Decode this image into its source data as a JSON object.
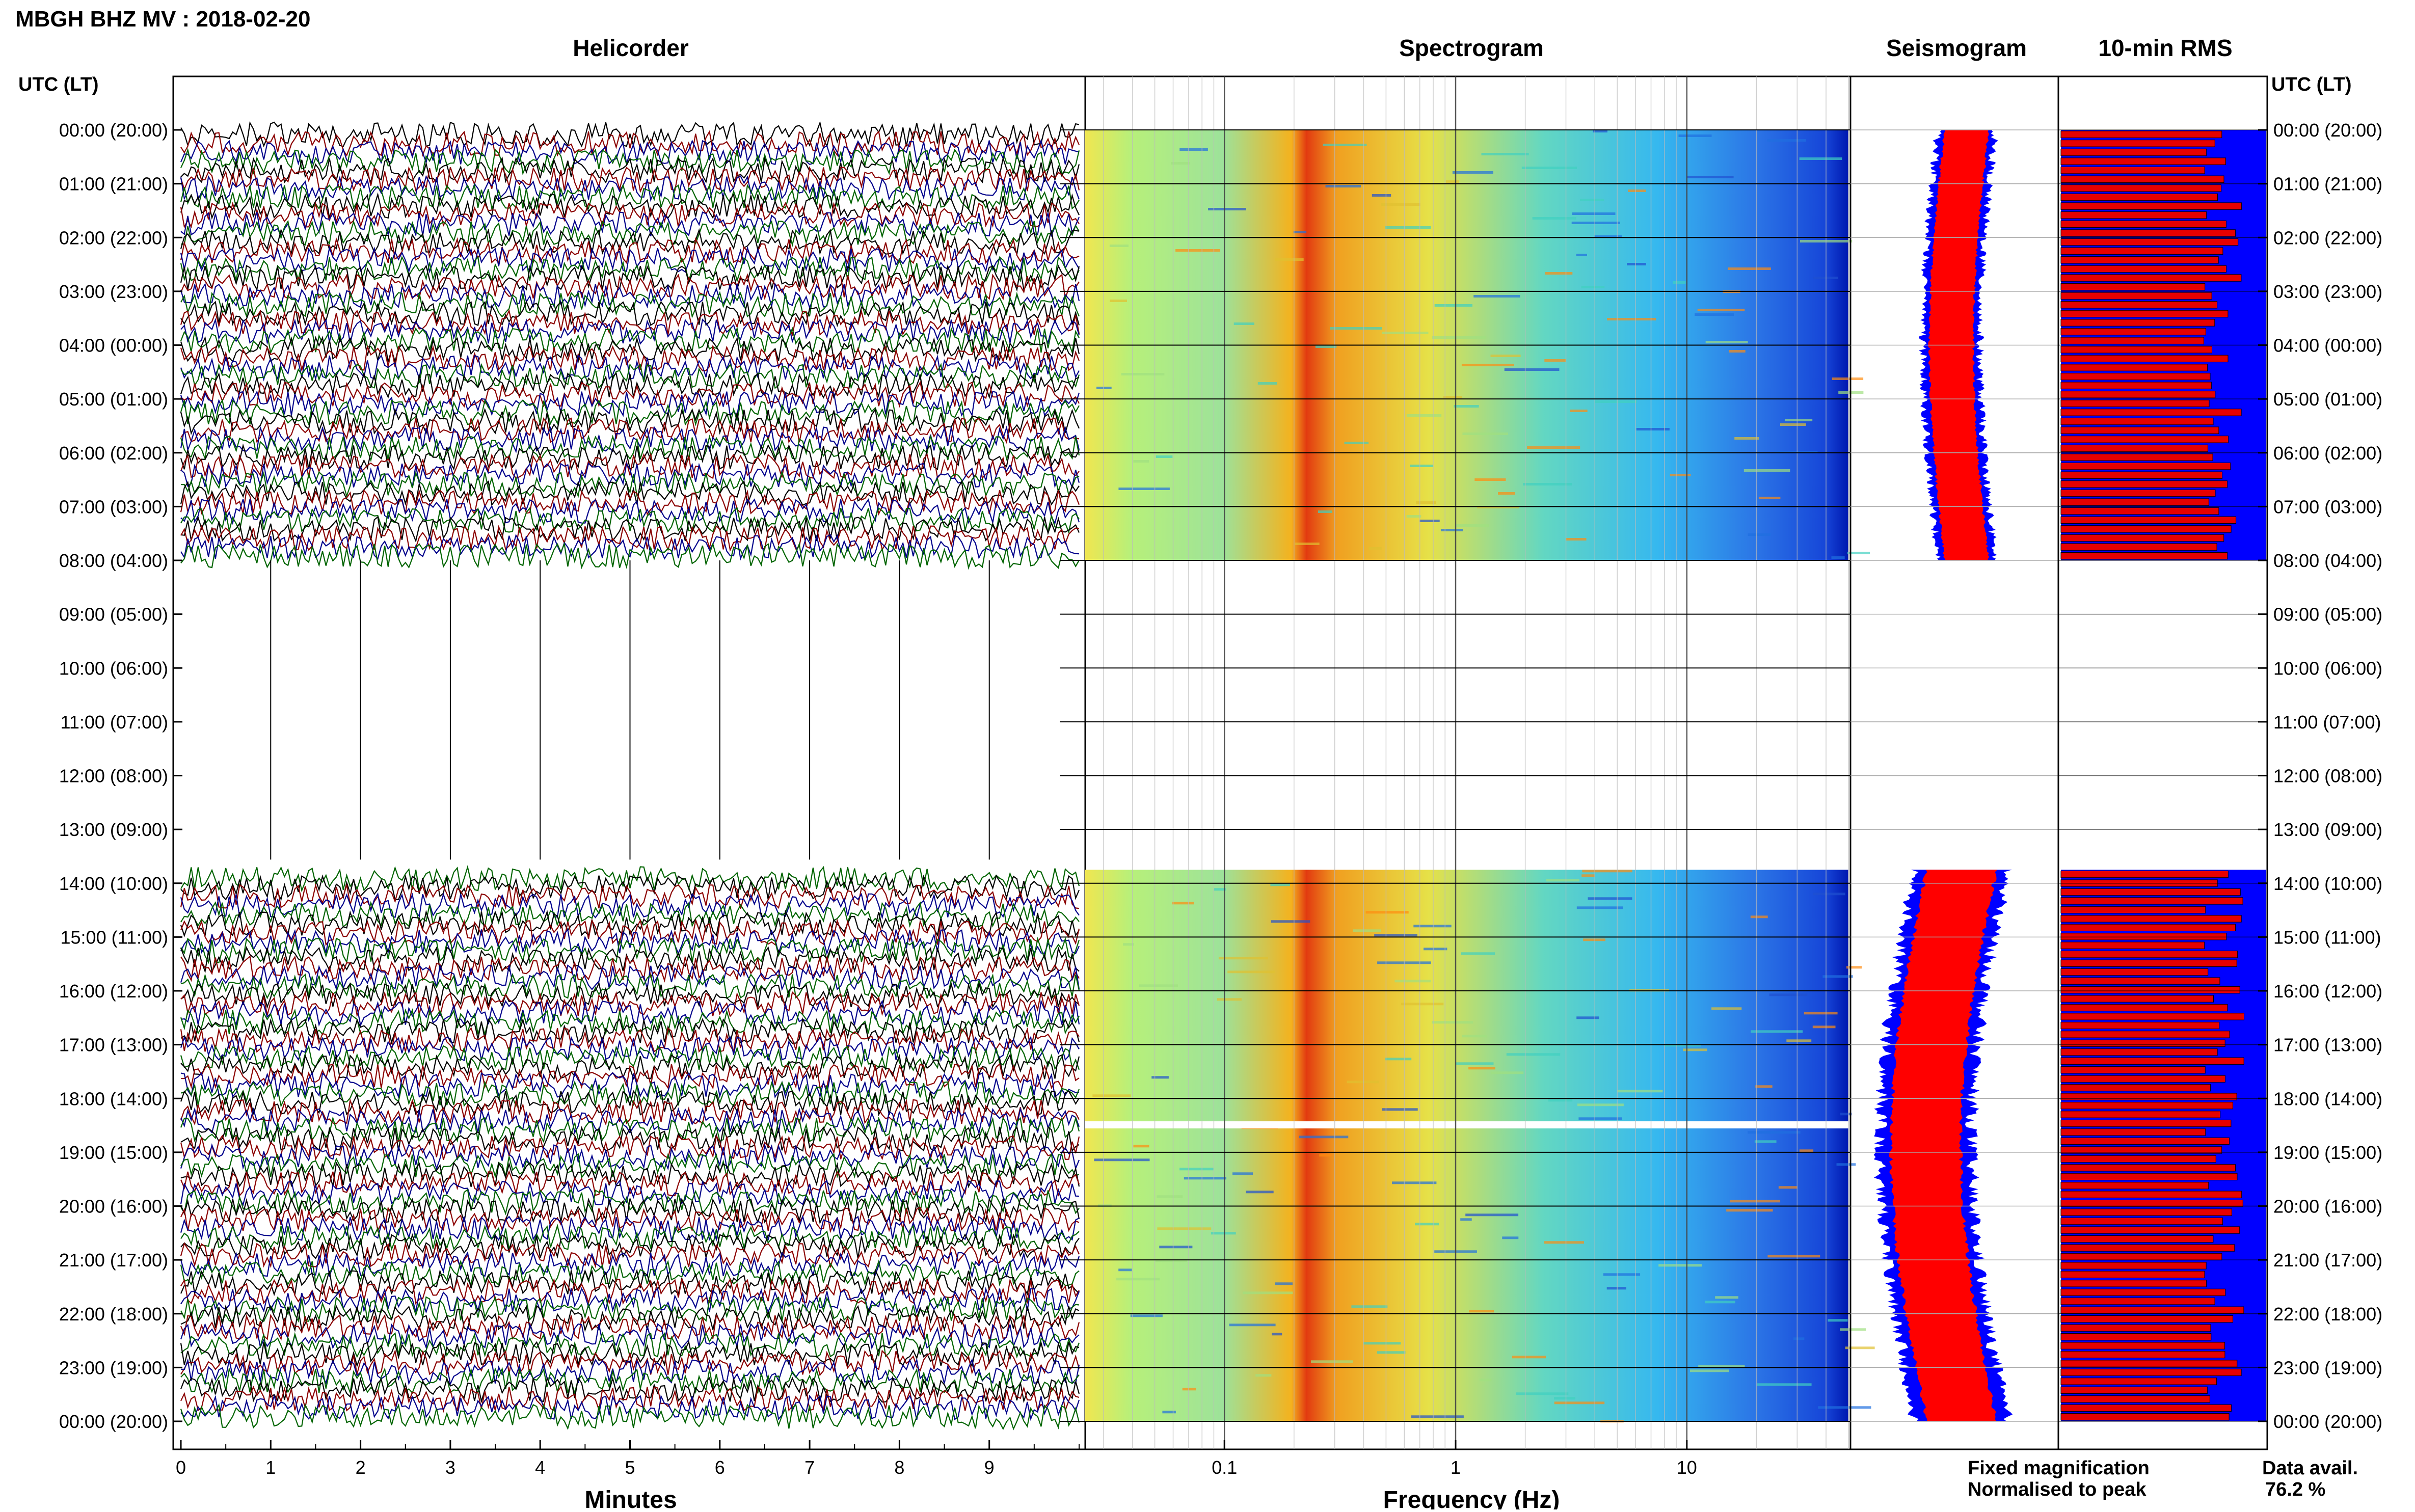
{
  "header": {
    "title": "MBGH BHZ MV : 2018-02-20"
  },
  "panels": {
    "helicorder": {
      "title": "Helicorder",
      "xlabel": "Minutes"
    },
    "spectrogram": {
      "title": "Spectrogram",
      "xlabel": "Frequency (Hz)"
    },
    "seismogram": {
      "title": "Seismogram"
    },
    "rms": {
      "title": "10-min RMS"
    }
  },
  "time_axis": {
    "left_label": "UTC (LT)",
    "right_label": "UTC (LT)",
    "ticks": [
      "00:00 (20:00)",
      "01:00 (21:00)",
      "02:00 (22:00)",
      "03:00 (23:00)",
      "04:00 (00:00)",
      "05:00 (01:00)",
      "06:00 (02:00)",
      "07:00 (03:00)",
      "08:00 (04:00)",
      "09:00 (05:00)",
      "10:00 (06:00)",
      "11:00 (07:00)",
      "12:00 (08:00)",
      "13:00 (09:00)",
      "14:00 (10:00)",
      "15:00 (11:00)",
      "16:00 (12:00)",
      "17:00 (13:00)",
      "18:00 (14:00)",
      "19:00 (15:00)",
      "20:00 (16:00)",
      "21:00 (17:00)",
      "22:00 (18:00)",
      "23:00 (19:00)",
      "00:00 (20:00)"
    ]
  },
  "legend": {
    "fixed": "Fixed magnification",
    "normalised": "Normalised to peak",
    "fixed_color": "#0000ff",
    "normalised_color": "#ff0000"
  },
  "availability": {
    "label": "Data avail.",
    "value": "76.2 %"
  },
  "colors": {
    "trace_cycle": [
      "#000000",
      "#8b0000",
      "#00008b",
      "#006400"
    ],
    "spectro_low": "#0000c8",
    "spectro_high": "#e60000"
  },
  "chart_data": {
    "type": "heatmap",
    "panels": [
      "Helicorder",
      "Spectrogram",
      "Seismogram",
      "10-min RMS"
    ],
    "time_range_utc_hours": [
      0,
      24
    ],
    "data_gap_utc_hours": [
      8,
      13.75
    ],
    "data_segments_utc_hours": [
      [
        0,
        8
      ],
      [
        13.75,
        24
      ]
    ],
    "helicorder": {
      "x_unit": "minutes",
      "xlim": [
        0,
        10
      ],
      "x_ticks": [
        "0",
        "1",
        "2",
        "3",
        "4",
        "5",
        "6",
        "7",
        "8",
        "9"
      ],
      "rows": 144,
      "trace_colors": [
        "black",
        "dark red",
        "dark blue",
        "dark green"
      ]
    },
    "spectrogram": {
      "x_scale": "log",
      "xlim": [
        0.025,
        50
      ],
      "x_tick_labels": [
        "0.1",
        "1",
        "10"
      ],
      "x_ticks": [
        0.1,
        1,
        10
      ],
      "dominant_band_hz": [
        0.2,
        0.4
      ],
      "missing_row_utc_hour": 18.5
    },
    "seismogram": {
      "series": [
        {
          "name": "Fixed magnification",
          "color": "blue"
        },
        {
          "name": "Normalised to peak",
          "color": "red"
        }
      ]
    },
    "rms": {
      "interval_minutes": 10,
      "series": [
        {
          "name": "Fixed magnification",
          "color": "blue"
        },
        {
          "name": "Normalised to peak",
          "color": "red"
        }
      ]
    },
    "data_availability_percent": 76.2
  }
}
